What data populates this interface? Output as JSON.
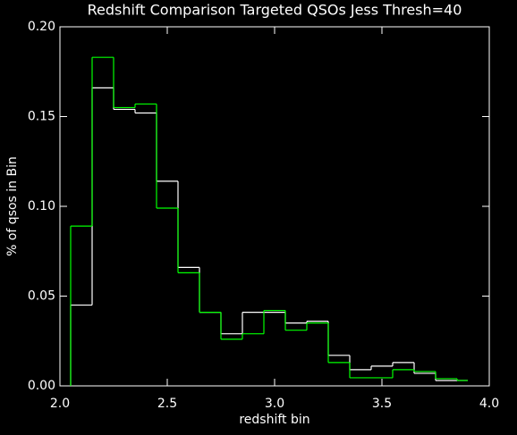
{
  "chart_data": {
    "type": "histogram",
    "title": "Redshift Comparison Targeted QSOs Jess Thresh=40",
    "x_label": "redshift bin",
    "y_label": "% of qsos in Bin",
    "bins": [
      2.05,
      2.15,
      2.25,
      2.35,
      2.45,
      2.55,
      2.65,
      2.75,
      2.85,
      2.95,
      3.05,
      3.15,
      3.25,
      3.35,
      3.45,
      3.55,
      3.65,
      3.75,
      3.85,
      3.9
    ],
    "series": [
      {
        "color": "#ffffff",
        "values": [
          0.045,
          0.166,
          0.154,
          0.152,
          0.114,
          0.066,
          0.041,
          0.029,
          0.041,
          0.041,
          0.035,
          0.036,
          0.017,
          0.009,
          0.011,
          0.013,
          0.007,
          0.003,
          0.003
        ]
      },
      {
        "color": "#00ff00",
        "values": [
          0.089,
          0.183,
          0.155,
          0.157,
          0.099,
          0.063,
          0.041,
          0.026,
          0.029,
          0.042,
          0.031,
          0.035,
          0.013,
          0.0045,
          0.0045,
          0.009,
          0.008,
          0.004,
          0.003
        ]
      }
    ],
    "xlim": [
      2.0,
      4.0
    ],
    "ylim": [
      0.0,
      0.2
    ],
    "xticks": [
      {
        "value": 2.0,
        "label": "2.0"
      },
      {
        "value": 2.5,
        "label": "2.5"
      },
      {
        "value": 3.0,
        "label": "3.0"
      },
      {
        "value": 3.5,
        "label": "3.5"
      },
      {
        "value": 4.0,
        "label": "4.0"
      }
    ],
    "yticks": [
      {
        "value": 0.0,
        "label": "0.00"
      },
      {
        "value": 0.05,
        "label": "0.05"
      },
      {
        "value": 0.1,
        "label": "0.10"
      },
      {
        "value": 0.15,
        "label": "0.15"
      },
      {
        "value": 0.2,
        "label": "0.20"
      }
    ],
    "axis_color": "#ffffff",
    "background": "#000000"
  }
}
